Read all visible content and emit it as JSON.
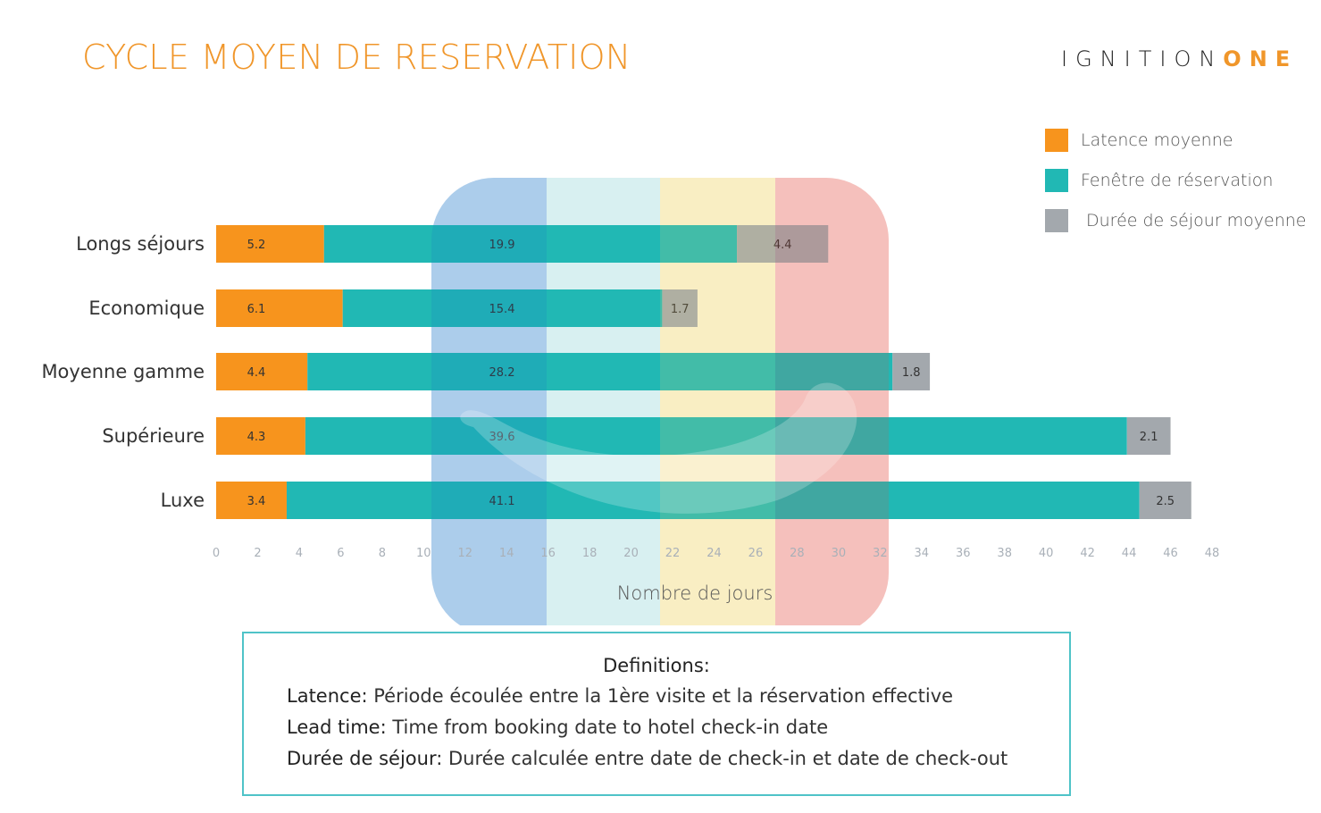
{
  "header": {
    "title": "CYCLE MOYEN DE RESERVATION",
    "logo_text_1": "IGNITION",
    "logo_text_2": "ONE"
  },
  "legend": [
    {
      "label": "Latence moyenne",
      "color": "#f7941d"
    },
    {
      "label": "Fenêtre de réservation",
      "color": "#21b8b4"
    },
    {
      "label": "Durée de séjour moyenne",
      "color": "#a3a8ad"
    }
  ],
  "chart_data": {
    "type": "bar",
    "orientation": "horizontal",
    "stacked": true,
    "categories": [
      "Longs séjours",
      "Economique",
      "Moyenne gamme",
      "Supérieure",
      "Luxe"
    ],
    "series": [
      {
        "name": "Latence moyenne",
        "color": "#f7941d",
        "values": [
          5.2,
          6.1,
          4.4,
          4.3,
          3.4
        ],
        "labels": [
          "5.2",
          "6.1",
          "4.4",
          "4.3",
          "3.4"
        ]
      },
      {
        "name": "Fenêtre de réservation",
        "color": "#21b8b4",
        "values": [
          19.9,
          15.4,
          28.2,
          39.6,
          41.1
        ],
        "labels": [
          "19.9",
          "15.4",
          "28.2",
          "39.6",
          "41.1"
        ]
      },
      {
        "name": "Durée de séjour moyenne",
        "color": "#a3a8ad",
        "values": [
          4.4,
          1.7,
          1.8,
          2.1,
          2.5
        ],
        "labels": [
          "4.4",
          "1.7",
          "1.8",
          "2.1",
          "2.5"
        ]
      }
    ],
    "xlabel": "Nombre de jours",
    "xlim": [
      0,
      48
    ],
    "xticks": [
      "0",
      "2",
      "4",
      "6",
      "8",
      "10",
      "12",
      "14",
      "16",
      "18",
      "20",
      "22",
      "24",
      "26",
      "28",
      "30",
      "32",
      "34",
      "36",
      "38",
      "40",
      "42",
      "44",
      "46",
      "48"
    ],
    "grid": false,
    "legend_position": "top-right"
  },
  "definitions": {
    "title": "Definitions:",
    "items": [
      {
        "term": "Latence:",
        "text": " Période écoulée entre la 1ère visite et la réservation effective"
      },
      {
        "term": "Lead time:",
        "text": " Time from booking date to hotel check-in date"
      },
      {
        "term": "Durée de séjour:",
        "text": " Durée calculée entre date de check-in et date de check-out"
      }
    ]
  }
}
